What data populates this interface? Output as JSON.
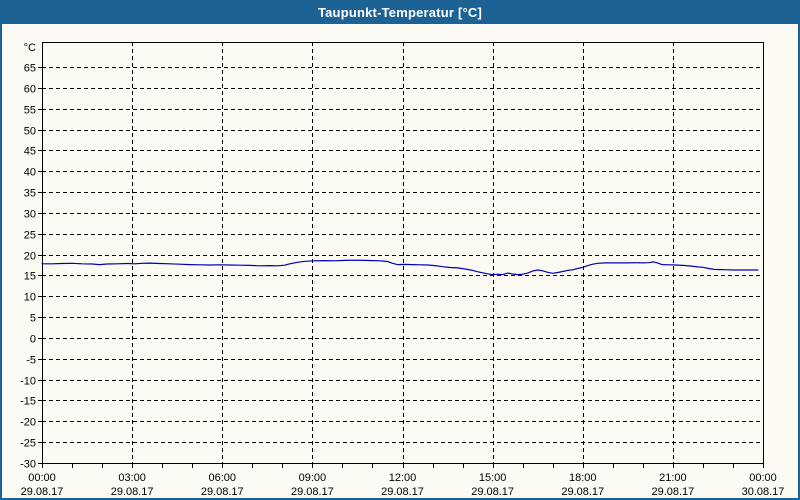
{
  "window": {
    "title": "Taupunkt-Temperatur [°C]"
  },
  "colors": {
    "titlebar_bg": "#1d6294",
    "titlebar_text": "#ffffff",
    "window_border": "#1d6294",
    "background": "#fbfbf4",
    "grid": "#000000",
    "axis": "#000000",
    "series_line": "#0000b8"
  },
  "chart_data": {
    "type": "line",
    "title": "Taupunkt-Temperatur [°C]",
    "ylabel": "°C",
    "xlabel": "",
    "grid": "dashed",
    "legend_position": "none",
    "y_axis": {
      "unit_label": "°C",
      "tick_values": [
        65,
        60,
        55,
        50,
        45,
        40,
        35,
        30,
        25,
        20,
        15,
        10,
        5,
        0,
        -5,
        -10,
        -15,
        -20,
        -25,
        -30
      ],
      "draw_min": -30,
      "draw_max": 71,
      "gridline_values": [
        65,
        60,
        55,
        50,
        45,
        40,
        35,
        30,
        25,
        20,
        15,
        10,
        5,
        0,
        -5,
        -10,
        -15,
        -20,
        -25
      ]
    },
    "x_axis": {
      "range_minutes": [
        0,
        1440
      ],
      "minor_tick_interval_hours": 1,
      "major_tick_interval_hours": 3,
      "gridline_hours": [
        3,
        6,
        9,
        12,
        15,
        18,
        21
      ],
      "ticks": [
        {
          "hour": 0,
          "time": "00:00",
          "date": "29.08.17"
        },
        {
          "hour": 3,
          "time": "03:00",
          "date": "29.08.17"
        },
        {
          "hour": 6,
          "time": "06:00",
          "date": "29.08.17"
        },
        {
          "hour": 9,
          "time": "09:00",
          "date": "29.08.17"
        },
        {
          "hour": 12,
          "time": "12:00",
          "date": "29.08.17"
        },
        {
          "hour": 15,
          "time": "15:00",
          "date": "29.08.17"
        },
        {
          "hour": 18,
          "time": "18:00",
          "date": "29.08.17"
        },
        {
          "hour": 21,
          "time": "21:00",
          "date": "29.08.17"
        },
        {
          "hour": 24,
          "time": "00:00",
          "date": "30.08.17"
        }
      ]
    },
    "series": [
      {
        "name": "Taupunkt-Temperatur",
        "unit": "°C",
        "color": "#0000b8",
        "points_minutes_celsius": [
          [
            0,
            17.8
          ],
          [
            20,
            17.8
          ],
          [
            40,
            17.85
          ],
          [
            60,
            17.9
          ],
          [
            80,
            17.8
          ],
          [
            100,
            17.75
          ],
          [
            115,
            17.6
          ],
          [
            130,
            17.75
          ],
          [
            150,
            17.8
          ],
          [
            170,
            17.85
          ],
          [
            185,
            17.8
          ],
          [
            200,
            17.9
          ],
          [
            215,
            17.95
          ],
          [
            235,
            17.85
          ],
          [
            255,
            17.8
          ],
          [
            275,
            17.7
          ],
          [
            295,
            17.6
          ],
          [
            315,
            17.55
          ],
          [
            335,
            17.5
          ],
          [
            355,
            17.55
          ],
          [
            375,
            17.5
          ],
          [
            395,
            17.45
          ],
          [
            415,
            17.4
          ],
          [
            435,
            17.3
          ],
          [
            455,
            17.35
          ],
          [
            470,
            17.3
          ],
          [
            485,
            17.45
          ],
          [
            495,
            17.8
          ],
          [
            510,
            18.15
          ],
          [
            525,
            18.4
          ],
          [
            545,
            18.5
          ],
          [
            565,
            18.55
          ],
          [
            585,
            18.5
          ],
          [
            605,
            18.6
          ],
          [
            625,
            18.65
          ],
          [
            645,
            18.6
          ],
          [
            660,
            18.55
          ],
          [
            675,
            18.5
          ],
          [
            690,
            18.35
          ],
          [
            700,
            17.9
          ],
          [
            710,
            17.6
          ],
          [
            725,
            17.65
          ],
          [
            740,
            17.6
          ],
          [
            755,
            17.55
          ],
          [
            770,
            17.5
          ],
          [
            785,
            17.35
          ],
          [
            800,
            17.1
          ],
          [
            815,
            16.9
          ],
          [
            830,
            16.8
          ],
          [
            845,
            16.55
          ],
          [
            860,
            16.2
          ],
          [
            875,
            15.75
          ],
          [
            890,
            15.4
          ],
          [
            900,
            15.2
          ],
          [
            910,
            15.3
          ],
          [
            920,
            15.2
          ],
          [
            930,
            15.55
          ],
          [
            940,
            15.35
          ],
          [
            950,
            15.2
          ],
          [
            960,
            15.3
          ],
          [
            970,
            15.55
          ],
          [
            980,
            16.05
          ],
          [
            990,
            16.3
          ],
          [
            1000,
            16.1
          ],
          [
            1010,
            15.75
          ],
          [
            1020,
            15.5
          ],
          [
            1030,
            15.7
          ],
          [
            1040,
            15.95
          ],
          [
            1050,
            16.2
          ],
          [
            1060,
            16.35
          ],
          [
            1070,
            16.65
          ],
          [
            1080,
            16.95
          ],
          [
            1090,
            17.35
          ],
          [
            1100,
            17.7
          ],
          [
            1110,
            17.9
          ],
          [
            1125,
            18.0
          ],
          [
            1140,
            18.0
          ],
          [
            1155,
            18.0
          ],
          [
            1170,
            18.0
          ],
          [
            1185,
            18.05
          ],
          [
            1200,
            18.0
          ],
          [
            1212,
            18.05
          ],
          [
            1222,
            18.25
          ],
          [
            1230,
            17.95
          ],
          [
            1238,
            17.6
          ],
          [
            1252,
            17.55
          ],
          [
            1265,
            17.5
          ],
          [
            1280,
            17.4
          ],
          [
            1295,
            17.25
          ],
          [
            1310,
            17.05
          ],
          [
            1320,
            16.95
          ],
          [
            1332,
            16.65
          ],
          [
            1342,
            16.45
          ],
          [
            1355,
            16.4
          ],
          [
            1370,
            16.35
          ],
          [
            1385,
            16.3
          ],
          [
            1405,
            16.3
          ],
          [
            1430,
            16.3
          ]
        ]
      }
    ]
  }
}
